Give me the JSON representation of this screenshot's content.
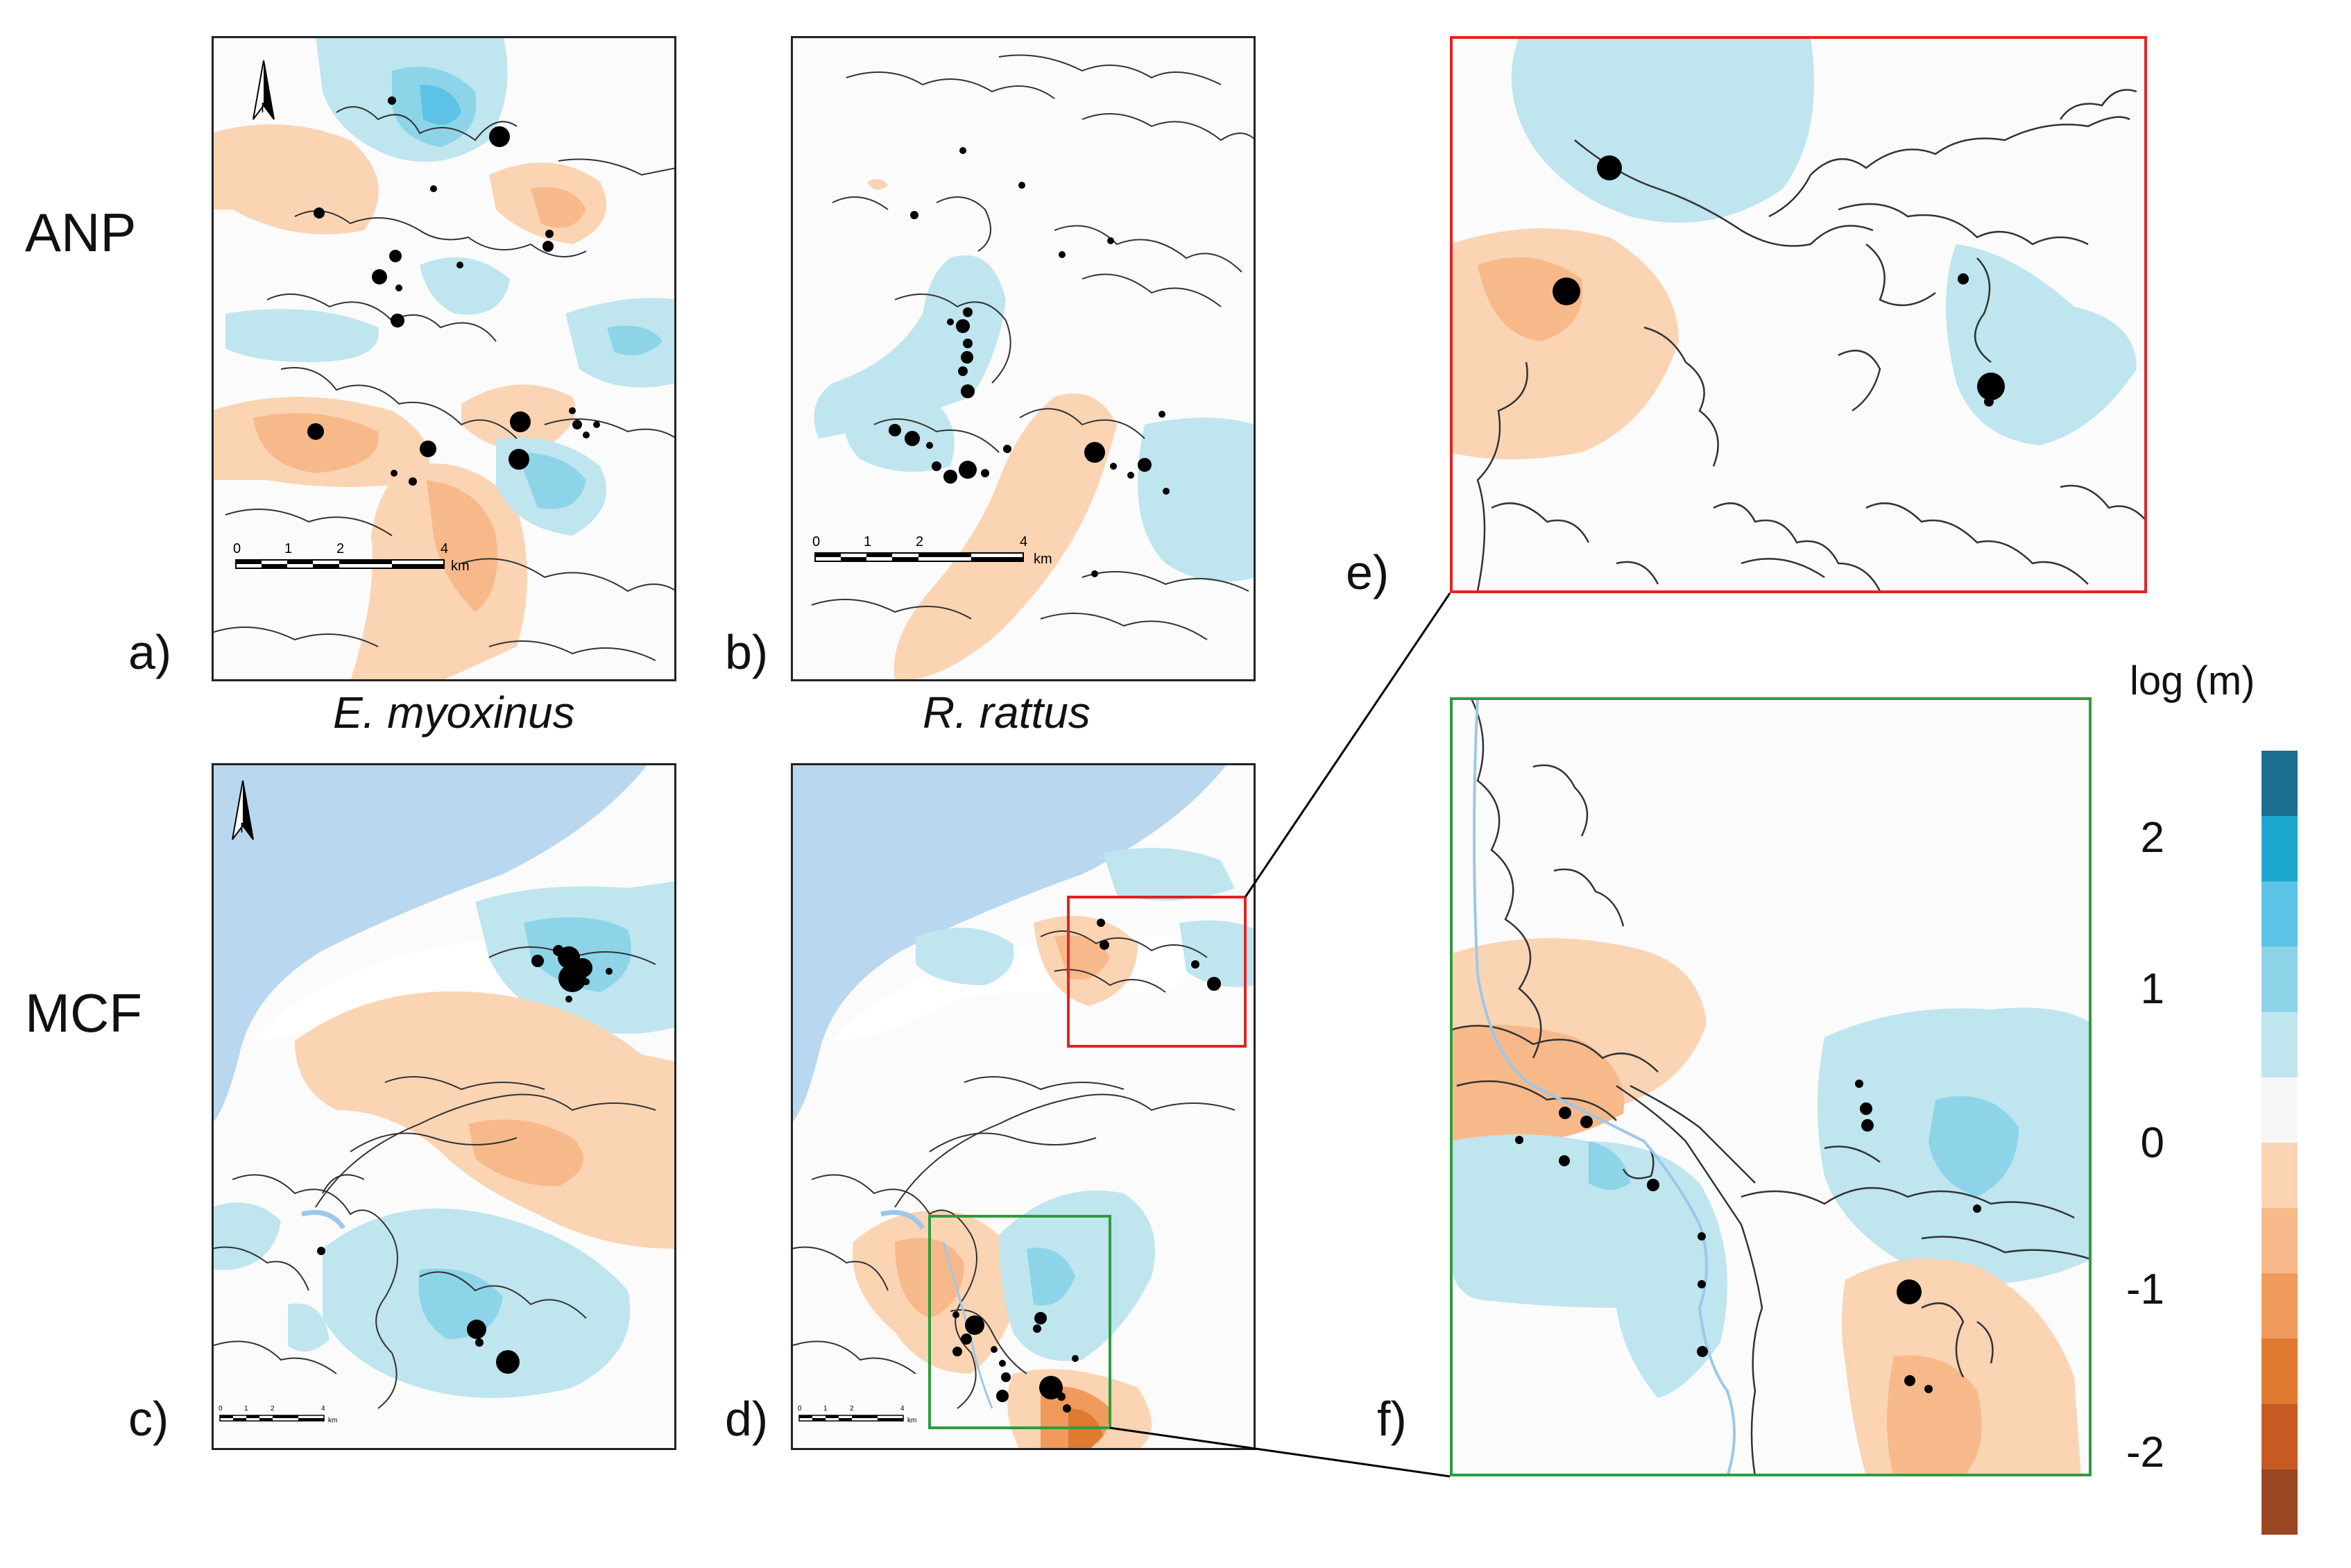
{
  "rows": {
    "top": "ANP",
    "bottom": "MCF"
  },
  "species": {
    "left": "E. myoxinus",
    "right": "R. rattus"
  },
  "panels": {
    "a": {
      "letter": "a)",
      "scale": {
        "ticks": [
          "0",
          "1",
          "2",
          "4"
        ],
        "unit": "km"
      },
      "north": "N"
    },
    "b": {
      "letter": "b)",
      "scale": {
        "ticks": [
          "0",
          "1",
          "2",
          "4"
        ],
        "unit": "km"
      }
    },
    "c": {
      "letter": "c)",
      "scale": {
        "ticks": [
          "0",
          "1",
          "2",
          "4"
        ],
        "unit": "km"
      },
      "north": "N"
    },
    "d": {
      "letter": "d)",
      "scale": {
        "ticks": [
          "0",
          "1",
          "2",
          "4"
        ],
        "unit": "km"
      }
    },
    "e": {
      "letter": "e)"
    },
    "f": {
      "letter": "f)"
    }
  },
  "legend": {
    "title": "log (m)",
    "ticks": [
      "2",
      "1",
      "0",
      "-1",
      "-2"
    ],
    "colors": [
      "#1b6f8f",
      "#1ba8cf",
      "#5cc3e6",
      "#8dd4e8",
      "#bfe5ef",
      "#f7f7f7",
      "#fbd4b4",
      "#f8b98a",
      "#f09a5b",
      "#e07a30",
      "#c65a22",
      "#9a4621"
    ]
  },
  "colors": {
    "inset_e_border": "#e02424",
    "inset_f_border": "#2e9c3c",
    "water": "#b9d7ee"
  }
}
